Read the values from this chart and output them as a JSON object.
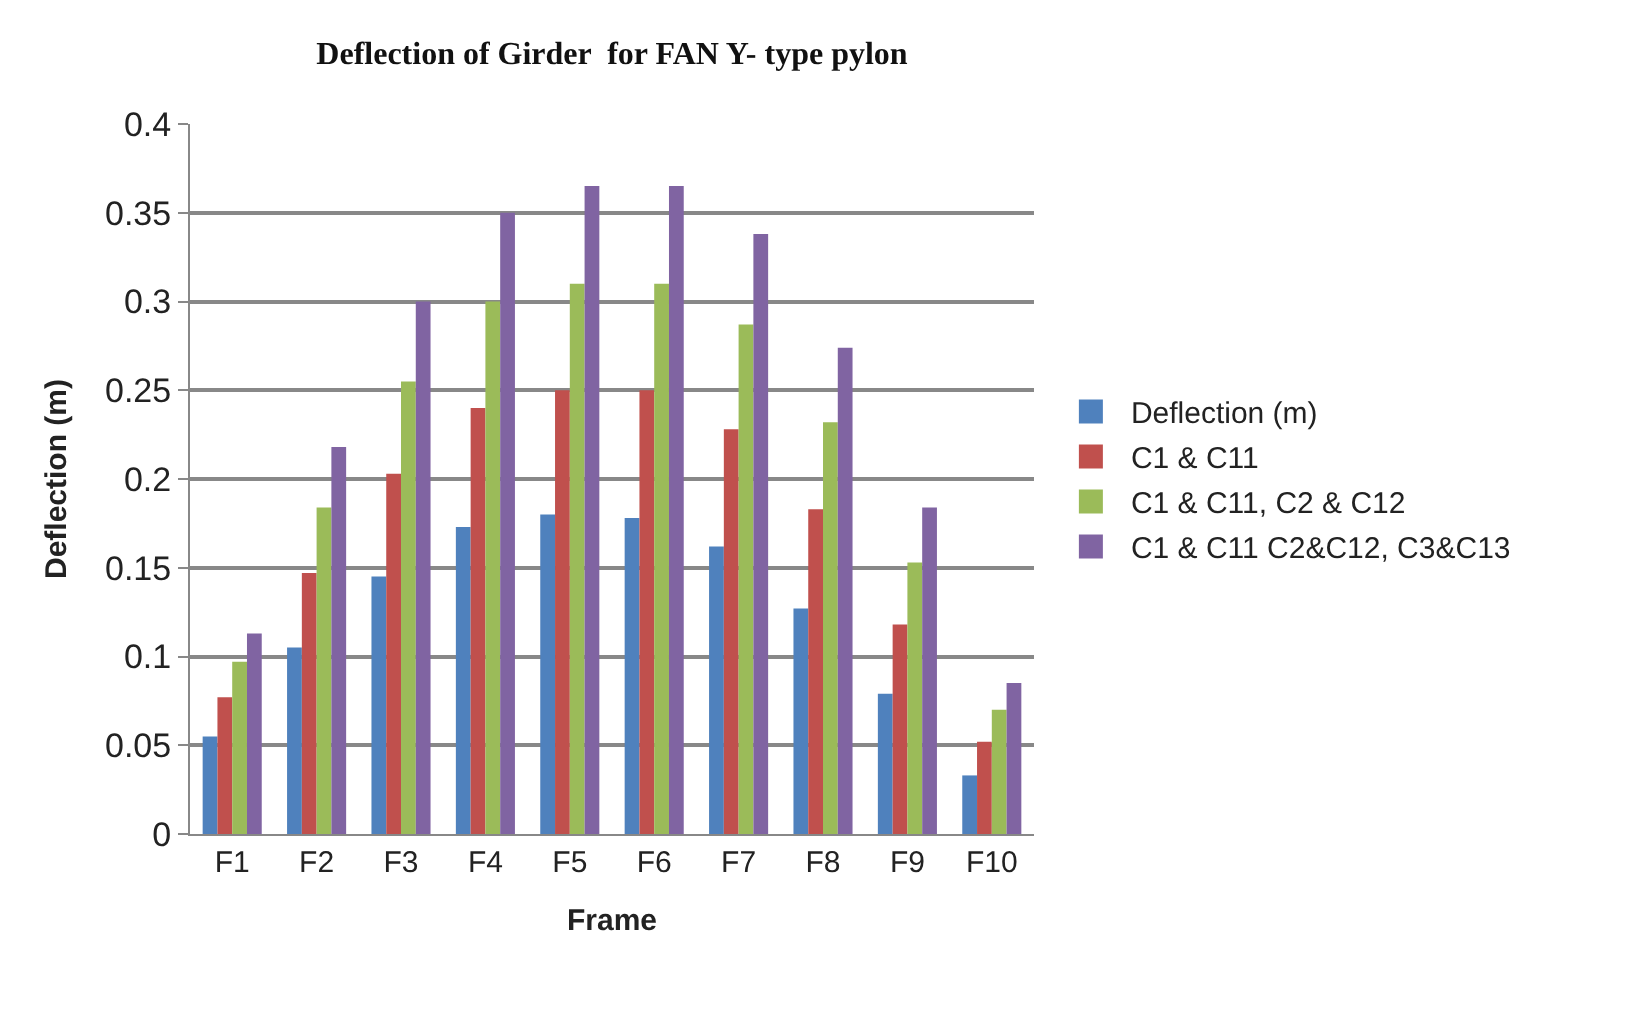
{
  "chart_data": {
    "type": "bar",
    "title": "Deflection of Girder  for FAN Y- type pylon",
    "xlabel": "Frame",
    "ylabel": "Deflection (m)",
    "categories": [
      "F1",
      "F2",
      "F3",
      "F4",
      "F5",
      "F6",
      "F7",
      "F8",
      "F9",
      "F10"
    ],
    "series": [
      {
        "name": "Deflection (m)",
        "color": "#4f81bd",
        "values": [
          0.055,
          0.105,
          0.145,
          0.173,
          0.18,
          0.178,
          0.162,
          0.127,
          0.079,
          0.033
        ]
      },
      {
        "name": "C1 & C11",
        "color": "#c0504d",
        "values": [
          0.077,
          0.147,
          0.203,
          0.24,
          0.25,
          0.25,
          0.228,
          0.183,
          0.118,
          0.052
        ]
      },
      {
        "name": "C1 & C11, C2 & C12",
        "color": "#9bbb59",
        "values": [
          0.097,
          0.184,
          0.255,
          0.3,
          0.31,
          0.31,
          0.287,
          0.232,
          0.153,
          0.07
        ]
      },
      {
        "name": "C1 & C11 C2&C12, C3&C13",
        "color": "#8064a2",
        "values": [
          0.113,
          0.218,
          0.3,
          0.35,
          0.365,
          0.365,
          0.338,
          0.274,
          0.184,
          0.085
        ]
      }
    ],
    "ylim": [
      0,
      0.4
    ],
    "yticks": [
      0,
      0.05,
      0.1,
      0.15,
      0.2,
      0.25,
      0.3,
      0.35,
      0.4
    ],
    "grid": "y",
    "legend": "right"
  }
}
